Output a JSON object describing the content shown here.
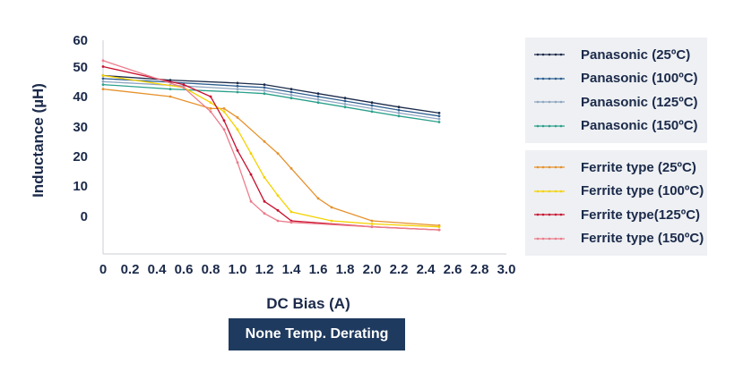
{
  "chart_data": {
    "type": "line",
    "xlabel": "DC Bias (A)",
    "ylabel": "Inductance (µH)",
    "badge": "None Temp. Derating",
    "x_ticks": [
      "0",
      "0.2",
      "0.4",
      "0.6",
      "0.8",
      "1.0",
      "1.2",
      "1.4",
      "1.6",
      "1.8",
      "2.0",
      "2.2",
      "2.4",
      "2.6",
      "2.8",
      "3.0"
    ],
    "y_ticks": [
      "60",
      "50",
      "40",
      "30",
      "20",
      "10",
      "0"
    ],
    "xlim": [
      0,
      3.0
    ],
    "grid": false,
    "legend_groups": [
      [
        "Panasonic (25ºC)",
        "Panasonic (100ºC)",
        "Panasonic (125ºC)",
        "Panasonic (150ºC)"
      ],
      [
        "Ferrite type (25ºC)",
        "Ferrite type (100ºC)",
        "Ferrite type(125ºC)",
        "Ferrite type (150ºC)"
      ]
    ],
    "series": [
      {
        "name": "Panasonic (25ºC)",
        "color": "#1b2a4a",
        "points": [
          [
            0,
            47
          ],
          [
            0.5,
            45.5
          ],
          [
            1.0,
            44.5
          ],
          [
            1.2,
            44
          ],
          [
            1.4,
            42.5
          ],
          [
            1.6,
            41
          ],
          [
            1.8,
            39.5
          ],
          [
            2.0,
            38
          ],
          [
            2.2,
            36.5
          ],
          [
            2.5,
            34.5
          ]
        ]
      },
      {
        "name": "Panasonic (100ºC)",
        "color": "#2c5d8f",
        "points": [
          [
            0,
            46
          ],
          [
            0.5,
            44.8
          ],
          [
            1.0,
            43.5
          ],
          [
            1.2,
            43
          ],
          [
            1.4,
            41.5
          ],
          [
            1.6,
            40
          ],
          [
            1.8,
            38.5
          ],
          [
            2.0,
            37
          ],
          [
            2.2,
            35.5
          ],
          [
            2.5,
            33.5
          ]
        ]
      },
      {
        "name": "Panasonic (125ºC)",
        "color": "#8fa6c2",
        "points": [
          [
            0,
            45
          ],
          [
            0.5,
            43.8
          ],
          [
            1.0,
            42.5
          ],
          [
            1.2,
            42
          ],
          [
            1.4,
            40.5
          ],
          [
            1.6,
            39
          ],
          [
            1.8,
            37.5
          ],
          [
            2.0,
            36
          ],
          [
            2.2,
            34.5
          ],
          [
            2.5,
            32.5
          ]
        ]
      },
      {
        "name": "Panasonic (150ºC)",
        "color": "#2aa08a",
        "points": [
          [
            0,
            44
          ],
          [
            0.5,
            42.5
          ],
          [
            1.0,
            41.5
          ],
          [
            1.2,
            41
          ],
          [
            1.4,
            39.5
          ],
          [
            1.6,
            38
          ],
          [
            1.8,
            36.5
          ],
          [
            2.0,
            35
          ],
          [
            2.2,
            33.5
          ],
          [
            2.5,
            31.5
          ]
        ]
      },
      {
        "name": "Ferrite type (25ºC)",
        "color": "#e6912b",
        "points": [
          [
            0,
            42.5
          ],
          [
            0.5,
            40
          ],
          [
            0.8,
            36
          ],
          [
            0.9,
            36
          ],
          [
            1.0,
            33
          ],
          [
            1.2,
            25
          ],
          [
            1.3,
            21
          ],
          [
            1.4,
            16
          ],
          [
            1.6,
            6
          ],
          [
            1.7,
            3
          ],
          [
            2.0,
            -1.5
          ],
          [
            2.5,
            -3
          ]
        ]
      },
      {
        "name": "Ferrite type (100ºC)",
        "color": "#f5d100",
        "points": [
          [
            0,
            47
          ],
          [
            0.6,
            43
          ],
          [
            0.8,
            38
          ],
          [
            0.9,
            35
          ],
          [
            1.0,
            29
          ],
          [
            1.1,
            21
          ],
          [
            1.2,
            13
          ],
          [
            1.3,
            7
          ],
          [
            1.4,
            1.5
          ],
          [
            1.7,
            -1.5
          ],
          [
            2.0,
            -2.5
          ],
          [
            2.5,
            -3.5
          ]
        ]
      },
      {
        "name": "Ferrite type(125ºC)",
        "color": "#c8102e",
        "points": [
          [
            0,
            50
          ],
          [
            0.6,
            44
          ],
          [
            0.8,
            40
          ],
          [
            0.9,
            32
          ],
          [
            1.0,
            22
          ],
          [
            1.1,
            14
          ],
          [
            1.2,
            5
          ],
          [
            1.3,
            2
          ],
          [
            1.4,
            -1.5
          ],
          [
            2.0,
            -3.5
          ],
          [
            2.5,
            -4.5
          ]
        ]
      },
      {
        "name": "Ferrite type (150ºC)",
        "color": "#ec7b8a",
        "points": [
          [
            0,
            52
          ],
          [
            0.6,
            43
          ],
          [
            0.8,
            35
          ],
          [
            0.9,
            29
          ],
          [
            1.0,
            18
          ],
          [
            1.1,
            5
          ],
          [
            1.2,
            1
          ],
          [
            1.3,
            -1.5
          ],
          [
            1.4,
            -2
          ],
          [
            2.0,
            -3.5
          ],
          [
            2.5,
            -4.5
          ]
        ]
      }
    ]
  }
}
